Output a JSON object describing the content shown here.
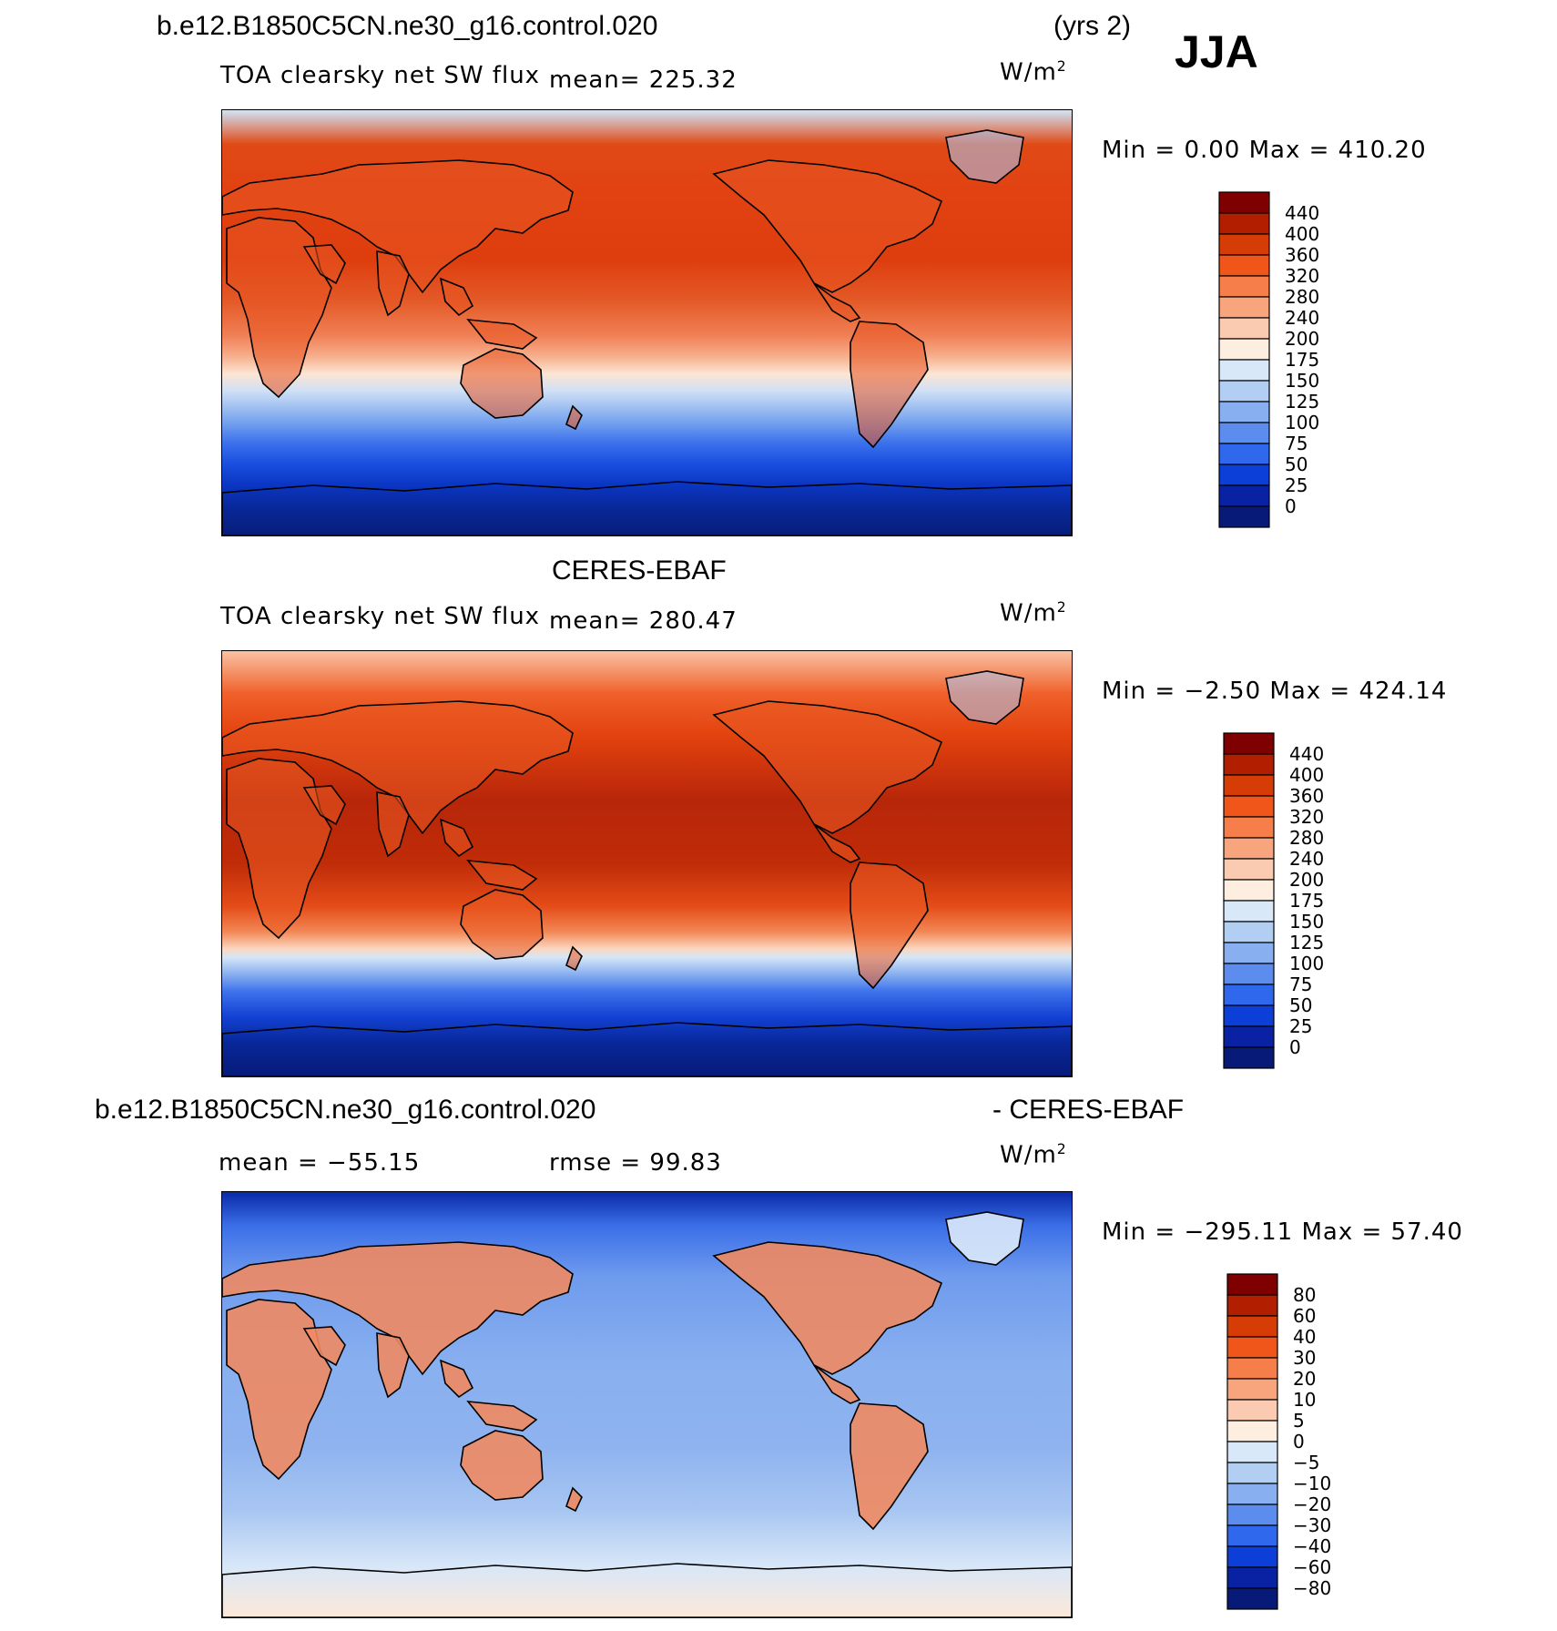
{
  "header": {
    "case_name": "b.e12.B1850C5CN.ne30_g16.control.020",
    "years": "(yrs 2)",
    "season": "JJA"
  },
  "panels": [
    {
      "id": "model",
      "heading": "",
      "variable": "TOA clearsky net SW flux",
      "mean_text": "mean=  225.32",
      "units": "W/m",
      "units_sup": "2",
      "minmax_text": "Min =    0.00 Max = 410.20",
      "colorbar": {
        "labels": [
          "440",
          "400",
          "360",
          "320",
          "280",
          "240",
          "200",
          "175",
          "150",
          "125",
          "100",
          "75",
          "50",
          "25",
          "0"
        ],
        "colors": [
          "#7f0000",
          "#b21e00",
          "#d63c06",
          "#f0561a",
          "#f57e4a",
          "#f8a57e",
          "#fbcbb1",
          "#fdeee0",
          "#d8e8f8",
          "#b2cef3",
          "#88afef",
          "#5b8cee",
          "#2f67ed",
          "#0b3fd8",
          "#0822a3",
          "#081a77"
        ]
      },
      "zonal_profile": [
        [
          "#cfe4f7",
          0.0
        ],
        [
          "#e04a16",
          0.08
        ],
        [
          "#e24112",
          0.2
        ],
        [
          "#de3d0e",
          0.35
        ],
        [
          "#e45a28",
          0.45
        ],
        [
          "#f08056",
          0.53
        ],
        [
          "#f7b08e",
          0.58
        ],
        [
          "#fde5d3",
          0.62
        ],
        [
          "#cfe0f6",
          0.66
        ],
        [
          "#9ebff1",
          0.7
        ],
        [
          "#6e9cee",
          0.74
        ],
        [
          "#3e73ec",
          0.78
        ],
        [
          "#1a4fe0",
          0.83
        ],
        [
          "#0b36c4",
          0.88
        ],
        [
          "#082796",
          0.94
        ],
        [
          "#071d7a",
          1.0
        ]
      ]
    },
    {
      "id": "obs",
      "heading": "CERES-EBAF",
      "variable": "TOA clearsky net SW flux",
      "mean_text": "mean=  280.47",
      "units": "W/m",
      "units_sup": "2",
      "minmax_text": "Min =  −2.50 Max = 424.14",
      "colorbar": {
        "labels": [
          "440",
          "400",
          "360",
          "320",
          "280",
          "240",
          "200",
          "175",
          "150",
          "125",
          "100",
          "75",
          "50",
          "25",
          "0"
        ],
        "colors": [
          "#7f0000",
          "#b21e00",
          "#d63c06",
          "#f0561a",
          "#f57e4a",
          "#f8a57e",
          "#fbcbb1",
          "#fdeee0",
          "#d8e8f8",
          "#b2cef3",
          "#88afef",
          "#5b8cee",
          "#2f67ed",
          "#0b3fd8",
          "#0822a3",
          "#081a77"
        ]
      },
      "zonal_profile": [
        [
          "#f9c2a3",
          0.0
        ],
        [
          "#f0602a",
          0.1
        ],
        [
          "#e2420e",
          0.2
        ],
        [
          "#b8260a",
          0.35
        ],
        [
          "#c02c08",
          0.5
        ],
        [
          "#e44c18",
          0.6
        ],
        [
          "#f28856",
          0.66
        ],
        [
          "#fbd7bf",
          0.7
        ],
        [
          "#d5e6f7",
          0.72
        ],
        [
          "#88afef",
          0.76
        ],
        [
          "#3e73ec",
          0.8
        ],
        [
          "#1341d3",
          0.86
        ],
        [
          "#08279a",
          0.92
        ],
        [
          "#061b78",
          1.0
        ]
      ]
    },
    {
      "id": "diff",
      "heading_left": "b.e12.B1850C5CN.ne30_g16.control.020",
      "heading_right": "- CERES-EBAF",
      "mean_text": "mean = −55.15",
      "rmse_text": "rmse =   99.83",
      "units": "W/m",
      "units_sup": "2",
      "minmax_text": "Min = −295.11 Max =  57.40",
      "colorbar": {
        "labels": [
          "80",
          "60",
          "40",
          "30",
          "20",
          "10",
          "5",
          "0",
          "−5",
          "−10",
          "−20",
          "−30",
          "−40",
          "−60",
          "−80"
        ],
        "colors": [
          "#7f0000",
          "#b21e00",
          "#d63c06",
          "#f0561a",
          "#f57e4a",
          "#f8a57e",
          "#fbcbb1",
          "#fdeee0",
          "#d8e8f8",
          "#b2cef3",
          "#88afef",
          "#5b8cee",
          "#2f67ed",
          "#0b3fd8",
          "#0822a3",
          "#081a77"
        ]
      },
      "zonal_profile": [
        [
          "#0a2aa8",
          0.0
        ],
        [
          "#3b6fe8",
          0.08
        ],
        [
          "#6f9bee",
          0.2
        ],
        [
          "#88afef",
          0.4
        ],
        [
          "#8fb3ef",
          0.6
        ],
        [
          "#a8c6f2",
          0.75
        ],
        [
          "#d8e7f8",
          0.88
        ],
        [
          "#fde8d8",
          1.0
        ]
      ]
    }
  ]
}
